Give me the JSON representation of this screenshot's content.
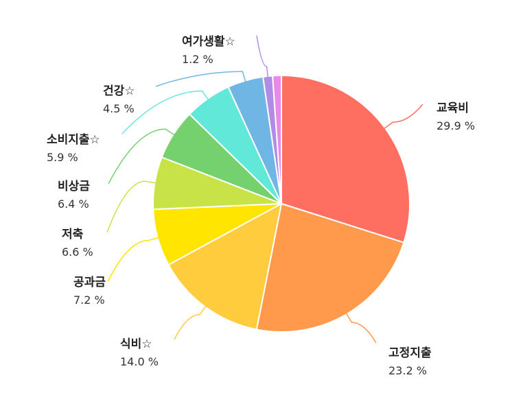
{
  "chart_data": {
    "type": "pie",
    "title": "",
    "unit": "%",
    "slices": [
      {
        "label": "교육비",
        "value": 29.9,
        "value_text": "29.9 %",
        "color": "#FF6F61"
      },
      {
        "label": "고정지출",
        "value": 23.2,
        "value_text": "23.2 %",
        "color": "#FF9A4D"
      },
      {
        "label": "식비☆",
        "value": 14.0,
        "value_text": "14.0 %",
        "color": "#FFCC3D"
      },
      {
        "label": "공과금",
        "value": 7.2,
        "value_text": "7.2 %",
        "color": "#FFE500"
      },
      {
        "label": "저축",
        "value": 6.6,
        "value_text": "6.6 %",
        "color": "#C8E347"
      },
      {
        "label": "비상금",
        "value": 6.4,
        "value_text": "6.4 %",
        "color": "#74D16E"
      },
      {
        "label": "소비지출☆",
        "value": 5.9,
        "value_text": "5.9 %",
        "color": "#62E8D8"
      },
      {
        "label": "건강☆",
        "value": 4.5,
        "value_text": "4.5 %",
        "color": "#6FB6E5"
      },
      {
        "label": "여가생활☆",
        "value": 1.2,
        "value_text": "1.2 %",
        "color": "#B18CE6"
      },
      {
        "label": "",
        "value": 1.1,
        "value_text": "",
        "color": "#E88BE8"
      }
    ]
  }
}
